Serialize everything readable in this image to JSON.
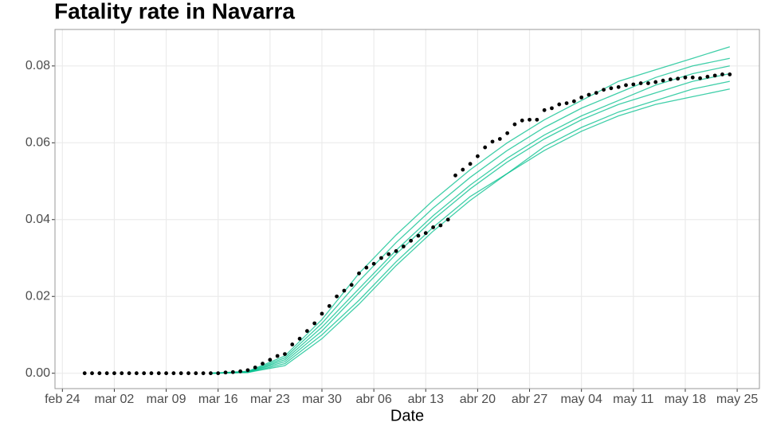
{
  "chart_data": {
    "type": "line",
    "title": "Fatality rate in  Navarra",
    "x_label": "Date",
    "xlim": [
      "02-23",
      "05-28"
    ],
    "xticks": [
      {
        "value": "02-24",
        "label": "feb 24"
      },
      {
        "value": "03-02",
        "label": "mar 02"
      },
      {
        "value": "03-09",
        "label": "mar 09"
      },
      {
        "value": "03-16",
        "label": "mar 16"
      },
      {
        "value": "03-23",
        "label": "mar 23"
      },
      {
        "value": "03-30",
        "label": "mar 30"
      },
      {
        "value": "04-06",
        "label": "abr 06"
      },
      {
        "value": "04-13",
        "label": "abr 13"
      },
      {
        "value": "04-20",
        "label": "abr 20"
      },
      {
        "value": "04-27",
        "label": "abr 27"
      },
      {
        "value": "05-04",
        "label": "may 04"
      },
      {
        "value": "05-11",
        "label": "may 11"
      },
      {
        "value": "05-18",
        "label": "may 18"
      },
      {
        "value": "05-25",
        "label": "may 25"
      }
    ],
    "ylim": [
      -0.004,
      0.0895
    ],
    "yticks": [
      {
        "value": 0,
        "label": "0.00"
      },
      {
        "value": 0.02,
        "label": "0.02"
      },
      {
        "value": 0.04,
        "label": "0.04"
      },
      {
        "value": 0.06,
        "label": "0.06"
      },
      {
        "value": 0.08,
        "label": "0.08"
      }
    ],
    "grid": true,
    "series": [
      {
        "color": "#00BF8C",
        "x": [
          "03-15",
          "03-20",
          "03-25",
          "03-30",
          "04-04",
          "04-09",
          "04-14",
          "04-19",
          "04-24",
          "04-29",
          "05-04",
          "05-09",
          "05-14",
          "05-19",
          "05-24"
        ],
        "values": [
          0,
          0.0003,
          0.003,
          0.011,
          0.021,
          0.031,
          0.04,
          0.048,
          0.055,
          0.061,
          0.066,
          0.07,
          0.073,
          0.076,
          0.078
        ]
      },
      {
        "color": "#00BF8C",
        "x": [
          "03-15",
          "03-20",
          "03-25",
          "03-30",
          "04-04",
          "04-09",
          "04-14",
          "04-19",
          "04-24",
          "04-29",
          "05-04",
          "05-09",
          "05-14",
          "05-19",
          "05-24"
        ],
        "values": [
          0,
          0.0004,
          0.004,
          0.013,
          0.024,
          0.034,
          0.043,
          0.051,
          0.058,
          0.064,
          0.069,
          0.073,
          0.077,
          0.08,
          0.082
        ]
      },
      {
        "color": "#00BF8C",
        "x": [
          "03-15",
          "03-20",
          "03-25",
          "03-30",
          "04-04",
          "04-09",
          "04-14",
          "04-19",
          "04-24",
          "04-29",
          "05-04",
          "05-09",
          "05-14",
          "05-19",
          "05-24"
        ],
        "values": [
          0,
          0.0002,
          0.0025,
          0.01,
          0.019,
          0.029,
          0.038,
          0.046,
          0.052,
          0.058,
          0.063,
          0.067,
          0.07,
          0.072,
          0.074
        ]
      },
      {
        "color": "#00BF8C",
        "x": [
          "03-15",
          "03-20",
          "03-25",
          "03-30",
          "04-04",
          "04-09",
          "04-14",
          "04-19",
          "04-24",
          "04-29",
          "05-04",
          "05-09",
          "05-14",
          "05-19",
          "05-24"
        ],
        "values": [
          0,
          0.0003,
          0.0035,
          0.012,
          0.022,
          0.032,
          0.041,
          0.049,
          0.056,
          0.062,
          0.067,
          0.071,
          0.075,
          0.078,
          0.08
        ]
      },
      {
        "color": "#00BF8C",
        "x": [
          "03-15",
          "03-20",
          "03-25",
          "03-30",
          "04-04",
          "04-09",
          "04-14",
          "04-19",
          "04-24",
          "04-29",
          "05-04",
          "05-09",
          "05-14",
          "05-19",
          "05-24"
        ],
        "values": [
          0,
          0.0002,
          0.002,
          0.009,
          0.018,
          0.028,
          0.037,
          0.045,
          0.052,
          0.059,
          0.064,
          0.068,
          0.071,
          0.074,
          0.076
        ]
      },
      {
        "color": "#00BF8C",
        "x": [
          "03-15",
          "03-20",
          "03-25",
          "03-30",
          "04-04",
          "04-09",
          "04-14",
          "04-19",
          "04-24",
          "04-29",
          "05-04",
          "05-09",
          "05-14",
          "05-19",
          "05-24"
        ],
        "values": [
          0,
          0.0005,
          0.0045,
          0.014,
          0.026,
          0.036,
          0.045,
          0.053,
          0.06,
          0.066,
          0.071,
          0.076,
          0.079,
          0.082,
          0.085
        ]
      },
      {
        "color": "#000000",
        "type": "scatter",
        "x": [
          "02-27",
          "02-28",
          "02-29",
          "03-01",
          "03-02",
          "03-03",
          "03-04",
          "03-05",
          "03-06",
          "03-07",
          "03-08",
          "03-09",
          "03-10",
          "03-11",
          "03-12",
          "03-13",
          "03-14",
          "03-15",
          "03-16",
          "03-17",
          "03-18",
          "03-19",
          "03-20",
          "03-21",
          "03-22",
          "03-23",
          "03-24",
          "03-25",
          "03-26",
          "03-27",
          "03-28",
          "03-29",
          "03-30",
          "03-31",
          "04-01",
          "04-02",
          "04-03",
          "04-04",
          "04-05",
          "04-06",
          "04-07",
          "04-08",
          "04-09",
          "04-10",
          "04-11",
          "04-12",
          "04-13",
          "04-14",
          "04-15",
          "04-16",
          "04-17",
          "04-18",
          "04-19",
          "04-20",
          "04-21",
          "04-22",
          "04-23",
          "04-24",
          "04-25",
          "04-26",
          "04-27",
          "04-28",
          "04-29",
          "04-30",
          "05-01",
          "05-02",
          "05-03",
          "05-04",
          "05-05",
          "05-06",
          "05-07",
          "05-08",
          "05-09",
          "05-10",
          "05-11",
          "05-12",
          "05-13",
          "05-14",
          "05-15",
          "05-16",
          "05-17",
          "05-18",
          "05-19",
          "05-20",
          "05-21",
          "05-22",
          "05-23",
          "05-24"
        ],
        "values": [
          0,
          0,
          0,
          0,
          0,
          0,
          0,
          0,
          0,
          0,
          0,
          0,
          0,
          0,
          0,
          0,
          0,
          0,
          0,
          0.0002,
          0.0003,
          0.0005,
          0.0008,
          0.0015,
          0.0025,
          0.0035,
          0.0045,
          0.005,
          0.0075,
          0.009,
          0.011,
          0.013,
          0.0155,
          0.0175,
          0.02,
          0.0215,
          0.023,
          0.026,
          0.0275,
          0.0285,
          0.03,
          0.031,
          0.0318,
          0.033,
          0.0345,
          0.0358,
          0.0365,
          0.038,
          0.0385,
          0.04,
          0.0515,
          0.053,
          0.0545,
          0.0565,
          0.0588,
          0.0603,
          0.061,
          0.0625,
          0.0648,
          0.0658,
          0.066,
          0.066,
          0.0685,
          0.069,
          0.07,
          0.0703,
          0.0708,
          0.0718,
          0.0725,
          0.073,
          0.0738,
          0.0742,
          0.0745,
          0.075,
          0.0752,
          0.0755,
          0.0755,
          0.0758,
          0.0762,
          0.0765,
          0.0767,
          0.077,
          0.077,
          0.0768,
          0.0772,
          0.0775,
          0.0778,
          0.0778
        ]
      }
    ]
  }
}
